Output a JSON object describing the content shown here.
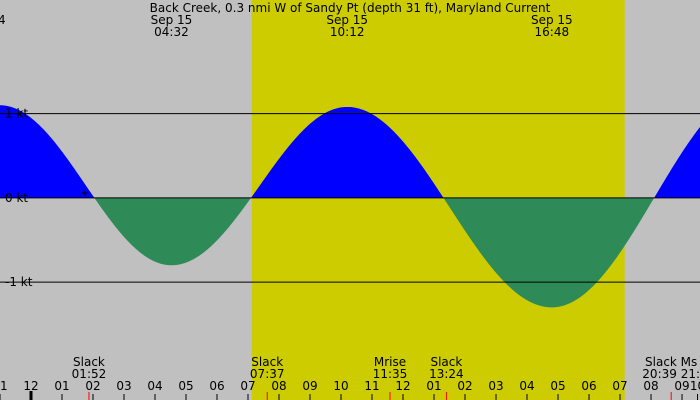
{
  "title": "Back Creek, 0.3 nmi W of Sandy Pt (depth 31 ft), Maryland Current",
  "colors": {
    "background": "#c0c0c0",
    "daylight": "#cccc00",
    "flood": "#0000ff",
    "ebb": "#2e8b57",
    "line": "#000000",
    "tick_mark_red": "#ff0000"
  },
  "chart_data": {
    "type": "area",
    "title": "Back Creek, 0.3 nmi W of Sandy Pt (depth 31 ft), Maryland Current",
    "ylabel": "",
    "y_unit": "kt",
    "y_ticks": [
      {
        "value": 1,
        "label": "1 kt"
      },
      {
        "value": 0,
        "label": "0 kt"
      },
      {
        "value": -1,
        "label": "-1 kt"
      }
    ],
    "ylim": [
      -2.4,
      2.35
    ],
    "xlim_hours": [
      -1.0,
      21.58
    ],
    "daylight_hours": [
      7.12,
      19.15
    ],
    "x_ticks": [
      {
        "hour": -1,
        "label": "11"
      },
      {
        "hour": 0,
        "label": "12"
      },
      {
        "hour": 1,
        "label": "01"
      },
      {
        "hour": 2,
        "label": "02"
      },
      {
        "hour": 3,
        "label": "03"
      },
      {
        "hour": 4,
        "label": "04"
      },
      {
        "hour": 5,
        "label": "05"
      },
      {
        "hour": 6,
        "label": "06"
      },
      {
        "hour": 7,
        "label": "07"
      },
      {
        "hour": 8,
        "label": "08"
      },
      {
        "hour": 9,
        "label": "09"
      },
      {
        "hour": 10,
        "label": "10"
      },
      {
        "hour": 11,
        "label": "11"
      },
      {
        "hour": 12,
        "label": "12"
      },
      {
        "hour": 13,
        "label": "01"
      },
      {
        "hour": 14,
        "label": "02"
      },
      {
        "hour": 15,
        "label": "03"
      },
      {
        "hour": 16,
        "label": "04"
      },
      {
        "hour": 17,
        "label": "05"
      },
      {
        "hour": 18,
        "label": "06"
      },
      {
        "hour": 19,
        "label": "07"
      },
      {
        "hour": 20,
        "label": "08"
      },
      {
        "hour": 21,
        "label": "09"
      }
    ],
    "extra_x_labels": [
      {
        "hour": 21.5,
        "label": "10"
      }
    ],
    "midnight_hour": 0,
    "red_tick_hours": [
      1.87,
      7.62,
      11.58,
      13.4,
      20.65
    ],
    "peaks": [
      {
        "hour": -1.0,
        "value": 1.1
      },
      {
        "hour": 4.53,
        "value": -0.8
      },
      {
        "hour": 10.2,
        "value": 1.08
      },
      {
        "hour": 16.8,
        "value": -1.3
      }
    ],
    "slack_hours": [
      1.87,
      7.62,
      13.4,
      20.65
    ],
    "top_annotations": [
      {
        "hour": 4.53,
        "date": "Sep 15",
        "time": "04:32"
      },
      {
        "hour": 10.2,
        "date": "Sep 15",
        "time": "10:12"
      },
      {
        "hour": 16.8,
        "date": "Sep 15",
        "time": "16:48"
      }
    ],
    "bottom_annotations": [
      {
        "hour": 1.87,
        "label": "Slack",
        "time": "01:52"
      },
      {
        "hour": 7.62,
        "label": "Slack",
        "time": "07:37"
      },
      {
        "hour": 11.58,
        "label": "Mrise",
        "time": "11:35"
      },
      {
        "hour": 13.4,
        "label": "Slack",
        "time": "13:24"
      },
      {
        "hour": 20.65,
        "label": "Slack Ms",
        "time": "20:39 21:"
      }
    ],
    "edge_label": "4",
    "marker_hour": 1.87
  }
}
